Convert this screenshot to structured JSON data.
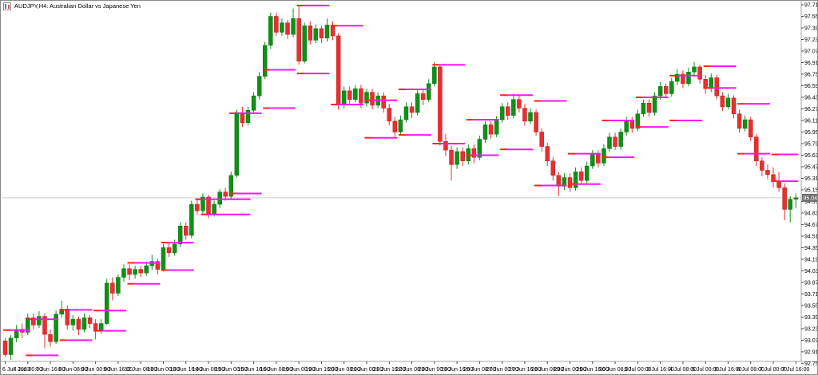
{
  "window": {
    "title": "AUDJPY,H4: Australian Dollar vs Japanese Yen",
    "icon": "candlestick-chart-icon"
  },
  "chart_data": {
    "type": "candlestick",
    "symbol": "AUDJPY",
    "timeframe": "H4",
    "title": "AUDJPY,H4: Australian Dollar vs Japanese Yen",
    "current_price": "95.040",
    "grid": "off",
    "legend": "none",
    "y_axis": {
      "side": "right",
      "labels": [
        "97.710",
        "97.550",
        "97.390",
        "97.230",
        "97.070",
        "96.910",
        "96.750",
        "96.590",
        "96.430",
        "96.270",
        "96.110",
        "95.950",
        "95.790",
        "95.630",
        "95.470",
        "95.310",
        "95.150",
        "94.990",
        "94.830",
        "94.670",
        "94.510",
        "94.350",
        "94.190",
        "94.030",
        "93.870",
        "93.710",
        "93.550",
        "93.390",
        "93.230",
        "93.070",
        "92.910",
        "92.750"
      ],
      "top_price": 97.71,
      "step": 0.16
    },
    "x_axis": {
      "labels": [
        "6 Jun 2023",
        "7 Jun 00:00",
        "7 Jun 16:00",
        "8 Jun 08:00",
        "9 Jun 00:00",
        "9 Jun 16:00",
        "12 Jun 08:00",
        "13 Jun 00:00",
        "13 Jun 16:00",
        "14 Jun 08:00",
        "15 Jun 00:00",
        "15 Jun 16:00",
        "16 Jun 08:00",
        "19 Jun 00:00",
        "19 Jun 16:00",
        "20 Jun 08:00",
        "21 Jun 00:00",
        "21 Jun 16:00",
        "22 Jun 08:00",
        "23 Jun 00:00",
        "23 Jun 16:00",
        "26 Jun 08:00",
        "27 Jun 00:00",
        "27 Jun 16:00",
        "28 Jun 08:00",
        "29 Jun 00:00",
        "29 Jun 16:00",
        "30 Jun 08:00",
        "3 Jul 00:00",
        "3 Jul 16:00",
        "4 Jul 08:00",
        "5 Jul 00:00",
        "5 Jul 16:00",
        "6 Jul 08:00",
        "7 Jul 00:00",
        "7 Jul 16:00"
      ],
      "candles_per_label": 4
    },
    "candles": [
      [
        93.06,
        93.1,
        92.84,
        92.87
      ],
      [
        92.87,
        93.14,
        92.8,
        93.1
      ],
      [
        93.1,
        93.28,
        93.04,
        93.22
      ],
      [
        93.22,
        93.3,
        93.1,
        93.18
      ],
      [
        93.18,
        93.44,
        93.14,
        93.38
      ],
      [
        93.38,
        93.44,
        93.22,
        93.28
      ],
      [
        93.28,
        93.47,
        93.24,
        93.4
      ],
      [
        93.4,
        93.44,
        92.96,
        93.15
      ],
      [
        93.15,
        93.22,
        92.98,
        93.05
      ],
      [
        93.05,
        93.48,
        93.02,
        93.43
      ],
      [
        93.43,
        93.62,
        93.38,
        93.5
      ],
      [
        93.5,
        93.55,
        93.22,
        93.28
      ],
      [
        93.28,
        93.42,
        93.2,
        93.36
      ],
      [
        93.36,
        93.4,
        93.14,
        93.22
      ],
      [
        93.22,
        93.44,
        93.18,
        93.38
      ],
      [
        93.38,
        93.42,
        93.24,
        93.3
      ],
      [
        93.3,
        93.36,
        93.08,
        93.21
      ],
      [
        93.21,
        93.36,
        93.16,
        93.3
      ],
      [
        93.3,
        93.92,
        93.28,
        93.86
      ],
      [
        93.86,
        93.94,
        93.62,
        93.72
      ],
      [
        93.72,
        93.98,
        93.68,
        93.94
      ],
      [
        93.94,
        94.12,
        93.88,
        94.06
      ],
      [
        94.06,
        94.12,
        93.9,
        93.98
      ],
      [
        93.98,
        94.1,
        93.92,
        94.05
      ],
      [
        94.05,
        94.1,
        93.94,
        94.0
      ],
      [
        94.0,
        94.16,
        93.96,
        94.1
      ],
      [
        94.1,
        94.25,
        94.04,
        94.16
      ],
      [
        94.16,
        94.2,
        93.98,
        94.05
      ],
      [
        94.05,
        94.4,
        94.02,
        94.35
      ],
      [
        94.35,
        94.42,
        94.22,
        94.28
      ],
      [
        94.28,
        94.46,
        94.24,
        94.4
      ],
      [
        94.4,
        94.7,
        94.36,
        94.65
      ],
      [
        94.65,
        94.7,
        94.46,
        94.52
      ],
      [
        94.52,
        95.0,
        94.48,
        94.95
      ],
      [
        94.95,
        95.02,
        94.8,
        94.86
      ],
      [
        94.86,
        95.1,
        94.82,
        95.05
      ],
      [
        95.05,
        95.08,
        94.76,
        94.82
      ],
      [
        94.82,
        95.0,
        94.78,
        94.95
      ],
      [
        94.95,
        95.16,
        94.9,
        95.12
      ],
      [
        95.12,
        95.18,
        95.0,
        95.06
      ],
      [
        95.06,
        95.4,
        95.02,
        95.35
      ],
      [
        95.35,
        96.26,
        95.32,
        96.22
      ],
      [
        96.22,
        96.3,
        96.02,
        96.08
      ],
      [
        96.08,
        96.3,
        96.04,
        96.25
      ],
      [
        96.25,
        96.5,
        96.2,
        96.45
      ],
      [
        96.45,
        96.78,
        96.4,
        96.72
      ],
      [
        96.72,
        97.2,
        96.68,
        97.15
      ],
      [
        97.15,
        97.6,
        97.1,
        97.55
      ],
      [
        97.55,
        97.6,
        97.28,
        97.33
      ],
      [
        97.33,
        97.52,
        97.28,
        97.46
      ],
      [
        97.46,
        97.5,
        97.24,
        97.3
      ],
      [
        97.3,
        97.66,
        97.26,
        97.52
      ],
      [
        97.52,
        97.71,
        96.88,
        96.93
      ],
      [
        96.93,
        97.46,
        96.9,
        97.42
      ],
      [
        97.42,
        97.48,
        97.16,
        97.22
      ],
      [
        97.22,
        97.44,
        97.18,
        97.38
      ],
      [
        97.38,
        97.42,
        97.18,
        97.25
      ],
      [
        97.25,
        97.52,
        97.2,
        97.43
      ],
      [
        97.43,
        97.48,
        97.22,
        97.28
      ],
      [
        97.28,
        97.32,
        96.26,
        96.33
      ],
      [
        96.33,
        96.58,
        96.28,
        96.52
      ],
      [
        96.52,
        96.58,
        96.32,
        96.4
      ],
      [
        96.4,
        96.6,
        96.36,
        96.55
      ],
      [
        96.55,
        96.6,
        96.28,
        96.35
      ],
      [
        96.35,
        96.55,
        96.3,
        96.5
      ],
      [
        96.5,
        96.55,
        96.26,
        96.32
      ],
      [
        96.32,
        96.5,
        96.28,
        96.45
      ],
      [
        96.45,
        96.5,
        96.22,
        96.28
      ],
      [
        96.28,
        96.34,
        96.04,
        96.1
      ],
      [
        96.1,
        96.16,
        95.88,
        95.95
      ],
      [
        95.95,
        96.18,
        95.9,
        96.12
      ],
      [
        96.12,
        96.36,
        96.08,
        96.3
      ],
      [
        96.3,
        96.36,
        96.14,
        96.22
      ],
      [
        96.22,
        96.54,
        96.18,
        96.48
      ],
      [
        96.48,
        96.54,
        96.32,
        96.4
      ],
      [
        96.4,
        96.68,
        96.36,
        96.62
      ],
      [
        96.62,
        96.92,
        96.58,
        96.85
      ],
      [
        96.85,
        96.88,
        95.76,
        95.82
      ],
      [
        95.82,
        95.92,
        95.62,
        95.7
      ],
      [
        95.7,
        95.76,
        95.28,
        95.5
      ],
      [
        95.5,
        95.74,
        95.44,
        95.68
      ],
      [
        95.68,
        95.74,
        95.48,
        95.55
      ],
      [
        95.55,
        95.78,
        95.5,
        95.72
      ],
      [
        95.72,
        95.78,
        95.52,
        95.6
      ],
      [
        95.6,
        95.9,
        95.56,
        95.85
      ],
      [
        95.85,
        96.1,
        95.8,
        96.05
      ],
      [
        96.05,
        96.1,
        95.86,
        95.92
      ],
      [
        95.92,
        96.17,
        95.88,
        96.12
      ],
      [
        96.12,
        96.35,
        96.08,
        96.3
      ],
      [
        96.3,
        96.36,
        96.12,
        96.18
      ],
      [
        96.18,
        96.48,
        96.14,
        96.4
      ],
      [
        96.4,
        96.46,
        96.22,
        96.28
      ],
      [
        96.28,
        96.34,
        96.04,
        96.1
      ],
      [
        96.1,
        96.28,
        96.06,
        96.22
      ],
      [
        96.22,
        96.26,
        95.9,
        95.95
      ],
      [
        95.95,
        96.0,
        95.68,
        95.75
      ],
      [
        95.75,
        95.8,
        95.48,
        95.55
      ],
      [
        95.55,
        95.6,
        95.28,
        95.35
      ],
      [
        95.35,
        95.4,
        95.06,
        95.2
      ],
      [
        95.2,
        95.38,
        95.15,
        95.32
      ],
      [
        95.32,
        95.38,
        95.12,
        95.18
      ],
      [
        95.18,
        95.46,
        95.14,
        95.4
      ],
      [
        95.4,
        95.46,
        95.22,
        95.28
      ],
      [
        95.28,
        95.54,
        95.24,
        95.48
      ],
      [
        95.48,
        95.7,
        95.44,
        95.65
      ],
      [
        95.65,
        95.7,
        95.46,
        95.52
      ],
      [
        95.52,
        95.78,
        95.48,
        95.72
      ],
      [
        95.72,
        95.94,
        95.68,
        95.88
      ],
      [
        95.88,
        95.94,
        95.7,
        95.75
      ],
      [
        95.75,
        96.0,
        95.7,
        95.95
      ],
      [
        95.95,
        96.16,
        95.9,
        96.1
      ],
      [
        96.1,
        96.16,
        95.94,
        96.0
      ],
      [
        96.0,
        96.26,
        95.96,
        96.2
      ],
      [
        96.2,
        96.4,
        96.16,
        96.35
      ],
      [
        96.35,
        96.4,
        96.16,
        96.22
      ],
      [
        96.22,
        96.5,
        96.18,
        96.45
      ],
      [
        96.45,
        96.64,
        96.4,
        96.58
      ],
      [
        96.58,
        96.62,
        96.42,
        96.48
      ],
      [
        96.48,
        96.7,
        96.44,
        96.65
      ],
      [
        96.65,
        96.82,
        96.6,
        96.75
      ],
      [
        96.75,
        96.8,
        96.56,
        96.62
      ],
      [
        96.62,
        96.84,
        96.58,
        96.78
      ],
      [
        96.78,
        96.92,
        96.72,
        96.85
      ],
      [
        96.85,
        96.88,
        96.62,
        96.68
      ],
      [
        96.68,
        96.74,
        96.48,
        96.55
      ],
      [
        96.55,
        96.76,
        96.5,
        96.7
      ],
      [
        96.7,
        96.74,
        96.4,
        96.45
      ],
      [
        96.45,
        96.5,
        96.24,
        96.3
      ],
      [
        96.3,
        96.48,
        96.26,
        96.42
      ],
      [
        96.42,
        96.46,
        96.14,
        96.2
      ],
      [
        96.2,
        96.26,
        95.94,
        96.0
      ],
      [
        96.0,
        96.18,
        95.96,
        96.12
      ],
      [
        96.12,
        96.16,
        95.82,
        95.88
      ],
      [
        95.88,
        95.92,
        95.48,
        95.55
      ],
      [
        95.55,
        95.6,
        95.34,
        95.42
      ],
      [
        95.42,
        95.5,
        95.3,
        95.36
      ],
      [
        95.36,
        95.46,
        95.18,
        95.27
      ],
      [
        95.27,
        95.4,
        95.12,
        95.18
      ],
      [
        95.18,
        95.24,
        94.73,
        94.88
      ],
      [
        94.88,
        95.06,
        94.7,
        95.02
      ],
      [
        95.02,
        95.1,
        94.9,
        95.04
      ]
    ],
    "indicator_lines": [
      {
        "p": 93.21,
        "a": 0,
        "b": 4
      },
      {
        "p": 93.36,
        "a": 4,
        "b": 9
      },
      {
        "p": 92.86,
        "a": 4,
        "b": 9
      },
      {
        "p": 93.49,
        "a": 10,
        "b": 15
      },
      {
        "p": 93.07,
        "a": 10,
        "b": 15
      },
      {
        "p": 93.48,
        "a": 16,
        "b": 21
      },
      {
        "p": 93.2,
        "a": 16,
        "b": 21
      },
      {
        "p": 94.14,
        "a": 22,
        "b": 27
      },
      {
        "p": 93.85,
        "a": 22,
        "b": 27
      },
      {
        "p": 94.42,
        "a": 28,
        "b": 33
      },
      {
        "p": 94.04,
        "a": 28,
        "b": 33
      },
      {
        "p": 95.02,
        "a": 34,
        "b": 43
      },
      {
        "p": 94.81,
        "a": 35,
        "b": 43
      },
      {
        "p": 96.21,
        "a": 40,
        "b": 45
      },
      {
        "p": 95.1,
        "a": 40,
        "b": 45
      },
      {
        "p": 96.81,
        "a": 46,
        "b": 51
      },
      {
        "p": 96.28,
        "a": 46,
        "b": 51
      },
      {
        "p": 97.7,
        "a": 52,
        "b": 57
      },
      {
        "p": 96.76,
        "a": 52,
        "b": 57
      },
      {
        "p": 97.42,
        "a": 58,
        "b": 63
      },
      {
        "p": 96.33,
        "a": 58,
        "b": 63
      },
      {
        "p": 96.39,
        "a": 64,
        "b": 69
      },
      {
        "p": 95.87,
        "a": 64,
        "b": 69
      },
      {
        "p": 96.54,
        "a": 70,
        "b": 75
      },
      {
        "p": 95.91,
        "a": 70,
        "b": 75
      },
      {
        "p": 96.88,
        "a": 76,
        "b": 81
      },
      {
        "p": 95.79,
        "a": 76,
        "b": 81
      },
      {
        "p": 96.12,
        "a": 82,
        "b": 87
      },
      {
        "p": 95.63,
        "a": 82,
        "b": 87
      },
      {
        "p": 96.46,
        "a": 88,
        "b": 93
      },
      {
        "p": 95.71,
        "a": 88,
        "b": 93
      },
      {
        "p": 96.38,
        "a": 94,
        "b": 99
      },
      {
        "p": 95.21,
        "a": 94,
        "b": 99
      },
      {
        "p": 95.65,
        "a": 100,
        "b": 105
      },
      {
        "p": 95.23,
        "a": 100,
        "b": 105
      },
      {
        "p": 96.11,
        "a": 106,
        "b": 111
      },
      {
        "p": 95.6,
        "a": 106,
        "b": 111
      },
      {
        "p": 96.43,
        "a": 112,
        "b": 117
      },
      {
        "p": 96.02,
        "a": 112,
        "b": 117
      },
      {
        "p": 96.73,
        "a": 118,
        "b": 123
      },
      {
        "p": 96.11,
        "a": 118,
        "b": 123
      },
      {
        "p": 96.86,
        "a": 124,
        "b": 129
      },
      {
        "p": 96.56,
        "a": 124,
        "b": 129
      },
      {
        "p": 96.34,
        "a": 130,
        "b": 135
      },
      {
        "p": 95.65,
        "a": 130,
        "b": 135
      },
      {
        "p": 95.64,
        "a": 136,
        "b": 140
      },
      {
        "p": 95.27,
        "a": 136,
        "b": 140
      }
    ],
    "colors": {
      "bull": "#0f9018",
      "bull_border": "#0a7210",
      "bear": "#e63030",
      "bear_border": "#c01818",
      "indicator_line": "#f816f8",
      "indicator_start": "#ff2020",
      "price_line": "#cfcfcf",
      "badge_bg": "#6e6e6e",
      "badge_text": "#ffffff",
      "axis_border": "#a6a6a6",
      "icon_blue": "#5a78cc",
      "icon_red": "#e05050"
    }
  }
}
